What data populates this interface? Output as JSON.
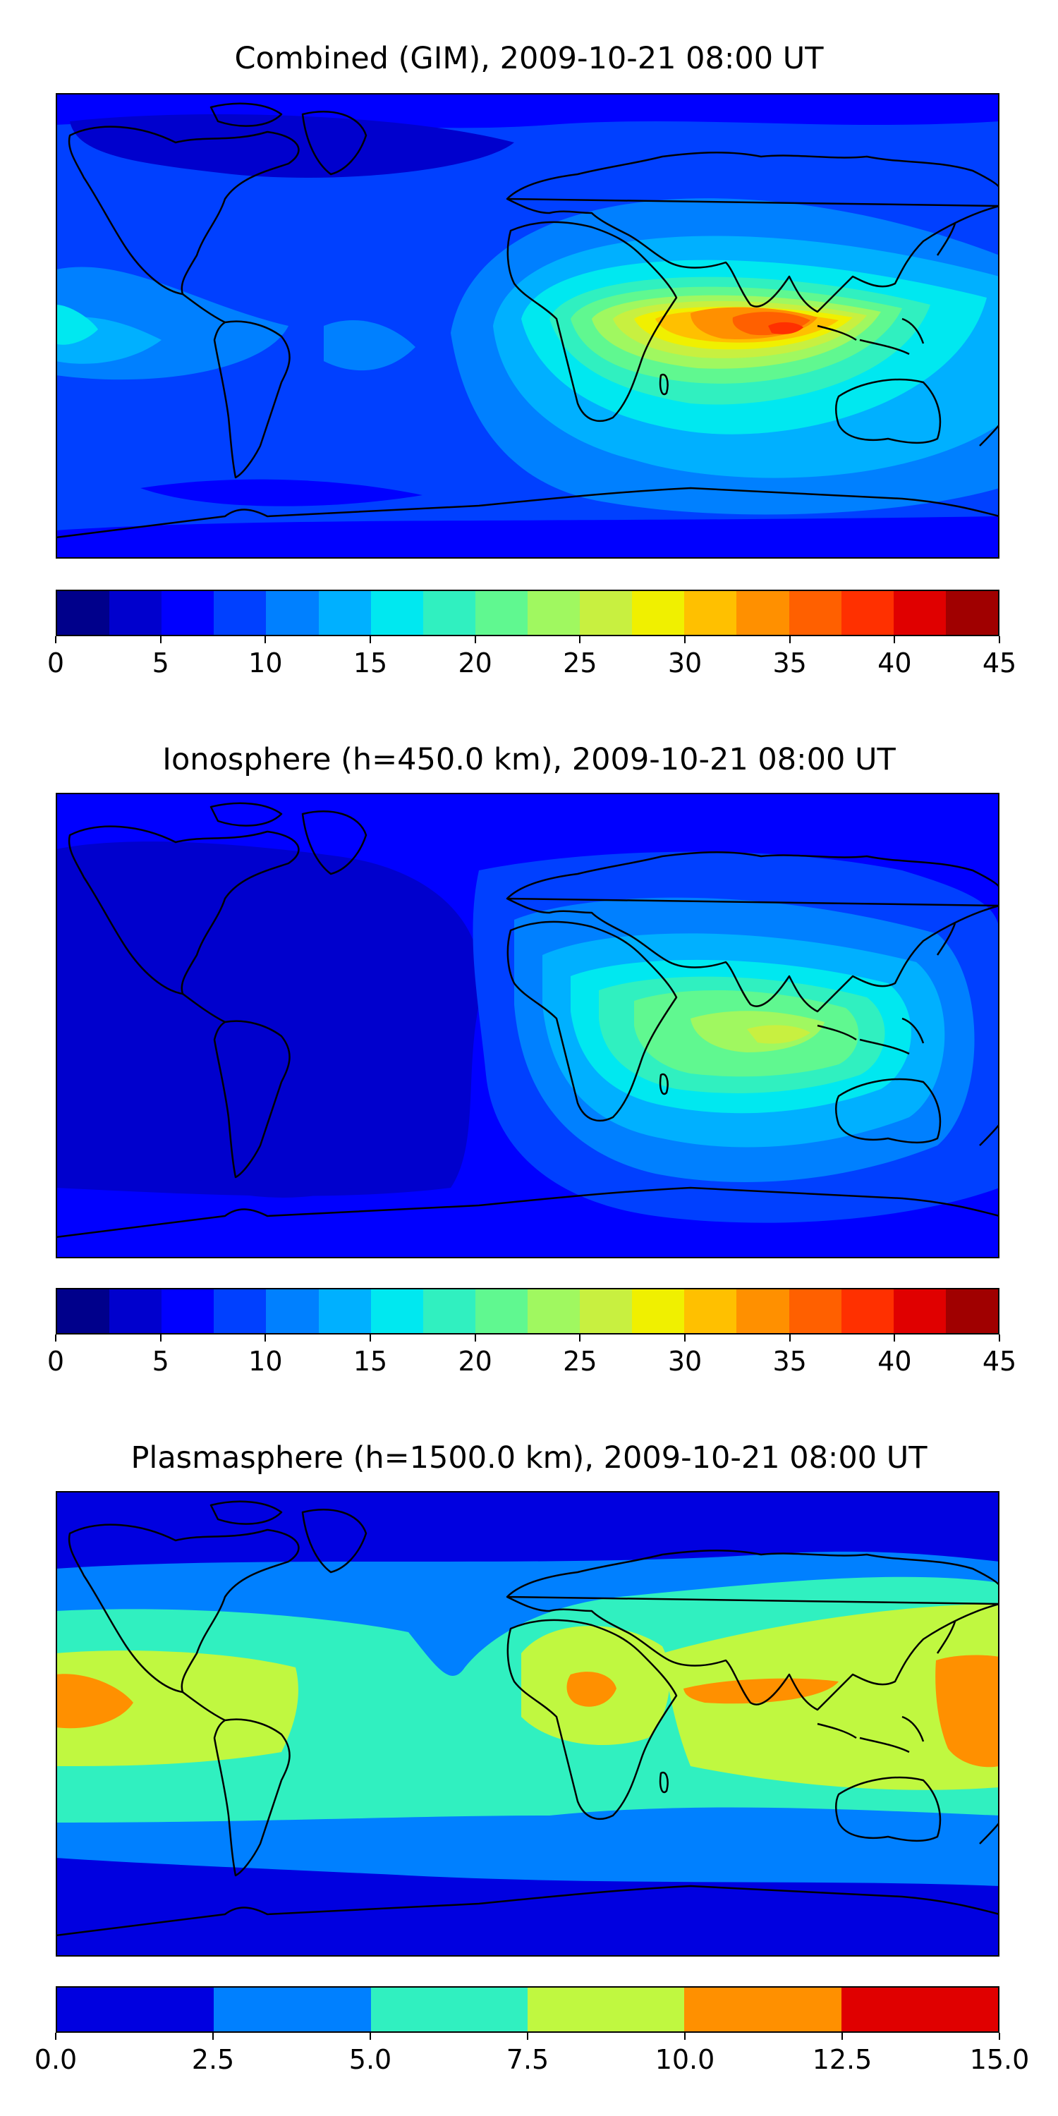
{
  "panels": [
    {
      "title": "Combined (GIM), 2009-10-21 08:00 UT",
      "colorbar": {
        "colors": [
          "#00008b",
          "#0000cd",
          "#0000ff",
          "#0040ff",
          "#0080ff",
          "#00b0ff",
          "#00e8f0",
          "#30f0c0",
          "#60f890",
          "#a0f860",
          "#c8f040",
          "#f0f000",
          "#ffc000",
          "#ff9000",
          "#ff6000",
          "#ff3000",
          "#e00000",
          "#a00000"
        ],
        "ticks": [
          "0",
          "5",
          "10",
          "15",
          "20",
          "25",
          "30",
          "35",
          "40",
          "45"
        ],
        "min": 0,
        "max": 45
      }
    },
    {
      "title": "Ionosphere  (h=450.0 km), 2009-10-21 08:00 UT",
      "colorbar": {
        "colors": [
          "#00008b",
          "#0000cd",
          "#0000ff",
          "#0040ff",
          "#0080ff",
          "#00b0ff",
          "#00e8f0",
          "#30f0c0",
          "#60f890",
          "#a0f860",
          "#c8f040",
          "#f0f000",
          "#ffc000",
          "#ff9000",
          "#ff6000",
          "#ff3000",
          "#e00000",
          "#a00000"
        ],
        "ticks": [
          "0",
          "5",
          "10",
          "15",
          "20",
          "25",
          "30",
          "35",
          "40",
          "45"
        ],
        "min": 0,
        "max": 45
      }
    },
    {
      "title": "Plasmasphere (h=1500.0 km), 2009-10-21 08:00 UT",
      "colorbar": {
        "colors": [
          "#0000e0",
          "#0080ff",
          "#30f0c0",
          "#c0f840",
          "#ff9000",
          "#e00000"
        ],
        "ticks": [
          "0.0",
          "2.5",
          "5.0",
          "7.5",
          "10.0",
          "12.5",
          "15.0"
        ],
        "min": 0,
        "max": 15
      }
    }
  ]
}
